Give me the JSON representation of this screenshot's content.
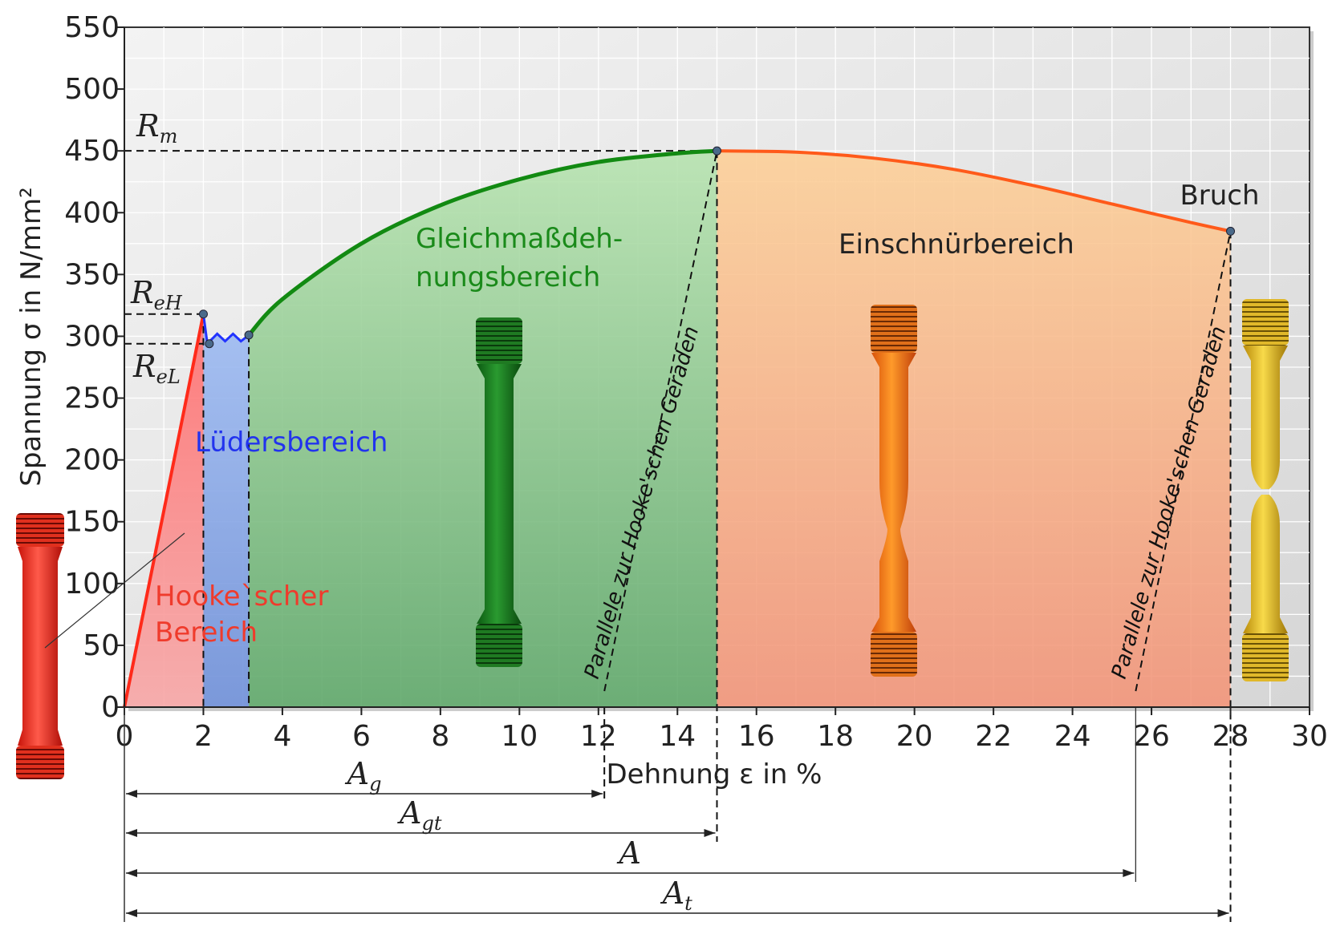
{
  "chart_data": {
    "type": "line",
    "xlabel": "Dehnung ε in %",
    "ylabel": "Spannung σ in N/mm²",
    "xlim": [
      0,
      30
    ],
    "ylim": [
      0,
      550
    ],
    "x_ticks": [
      "0",
      "2",
      "4",
      "6",
      "8",
      "10",
      "12",
      "14",
      "16",
      "18",
      "20",
      "22",
      "24",
      "26",
      "28",
      "30"
    ],
    "y_ticks": [
      "0",
      "50",
      "100",
      "150",
      "200",
      "250",
      "300",
      "350",
      "400",
      "450",
      "500",
      "550"
    ],
    "grid": true,
    "curve": {
      "hooke": [
        [
          0,
          0
        ],
        [
          2.0,
          318
        ]
      ],
      "lueders": [
        [
          2.0,
          318
        ],
        [
          2.1,
          294
        ],
        [
          2.35,
          302
        ],
        [
          2.55,
          296
        ],
        [
          2.75,
          302
        ],
        [
          2.95,
          296
        ],
        [
          3.15,
          301
        ]
      ],
      "uniform": [
        [
          3.15,
          301
        ],
        [
          4,
          330
        ],
        [
          6,
          375
        ],
        [
          8,
          406
        ],
        [
          10,
          427
        ],
        [
          12,
          441
        ],
        [
          14,
          448
        ],
        [
          15,
          450
        ]
      ],
      "necking": [
        [
          15,
          450
        ],
        [
          17,
          449
        ],
        [
          19,
          444
        ],
        [
          21,
          435
        ],
        [
          23,
          422
        ],
        [
          25,
          407
        ],
        [
          27,
          392
        ],
        [
          28,
          385
        ]
      ]
    },
    "points": {
      "ReH": {
        "label": "R",
        "sub": "eH",
        "value": 318
      },
      "ReL": {
        "label": "R",
        "sub": "eL",
        "value": 294
      },
      "Rm": {
        "label": "R",
        "sub": "m",
        "value": 450
      },
      "break": {
        "label": "Bruch",
        "x": 28,
        "y": 385
      }
    },
    "regions": [
      {
        "name": "Hooke`scher Bereich",
        "lines": [
          "Hooke`scher",
          "Bereich"
        ],
        "x": [
          0,
          2.0
        ],
        "color": "#ef3b2c"
      },
      {
        "name": "Lüdersbereich",
        "lines": [
          "Lüdersbereich"
        ],
        "x": [
          2.0,
          3.15
        ],
        "color": "#3344ee"
      },
      {
        "name": "Gleichmaßdehnungsbereich",
        "lines": [
          "Gleichmaßdeh-",
          "nungsbereich"
        ],
        "x": [
          3.15,
          15
        ],
        "color": "#1a8a1a"
      },
      {
        "name": "Einschnürbereich",
        "lines": [
          "Einschnürbereich"
        ],
        "x": [
          15,
          28
        ],
        "color": "#222222"
      }
    ],
    "hooke_parallels": [
      {
        "label": "Parallele zur Hooke'schen Geraden",
        "from_x": 12.15,
        "to_x": 15
      },
      {
        "label": "Parallele zur Hooke'schen Geraden",
        "from_x": 25.6,
        "to_x": 28
      }
    ],
    "strain_measures": [
      {
        "label": "A",
        "sub": "g",
        "to": 12.15
      },
      {
        "label": "A",
        "sub": "gt",
        "to": 15
      },
      {
        "label": "A",
        "sub": "",
        "to": 25.6
      },
      {
        "label": "A",
        "sub": "t",
        "to": 28
      }
    ]
  },
  "colors": {
    "hooke_line": "#ff2a1a",
    "lueders_line": "#2233ff",
    "uniform_line": "#128a12",
    "necking_line": "#ff5a1a",
    "plot_bg": "#e9e9e9",
    "grid": "#ffffff"
  }
}
